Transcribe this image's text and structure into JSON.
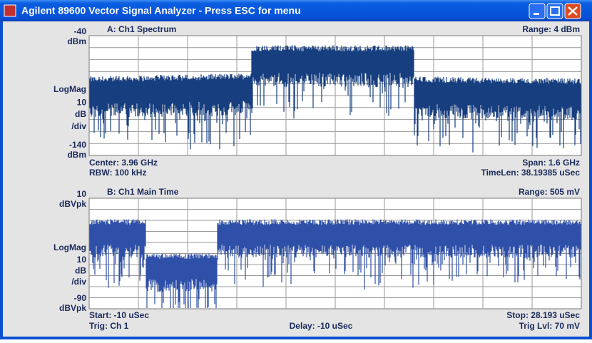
{
  "window": {
    "title": "Agilent 89600 Vector Signal Analyzer - Press ESC for menu"
  },
  "panels": [
    {
      "header": "A: Ch1 Spectrum",
      "range": "Range: 4 dBm",
      "ylabels": [
        "-40",
        "dBm",
        "LogMag",
        "10",
        "dB",
        "/div",
        "-140",
        "dBm"
      ],
      "footer_left": [
        "Center: 3.96 GHz",
        "RBW: 100 kHz"
      ],
      "footer_center": [],
      "footer_right": [
        "Span: 1.6 GHz",
        "TimeLen: 38.19385 uSec"
      ]
    },
    {
      "header": "B: Ch1 Main Time",
      "range": "Range: 505 mV",
      "ylabels": [
        "10",
        "dBVpk",
        "LogMag",
        "10",
        "dB",
        "/div",
        "-90",
        "dBVpk"
      ],
      "footer_left": [
        "Start: -10 uSec",
        "Trig: Ch 1"
      ],
      "footer_center": [
        "Delay: -10 uSec"
      ],
      "footer_right": [
        "Stop: 28.193 uSec",
        "Trig Lvl: 70 mV"
      ]
    }
  ]
}
